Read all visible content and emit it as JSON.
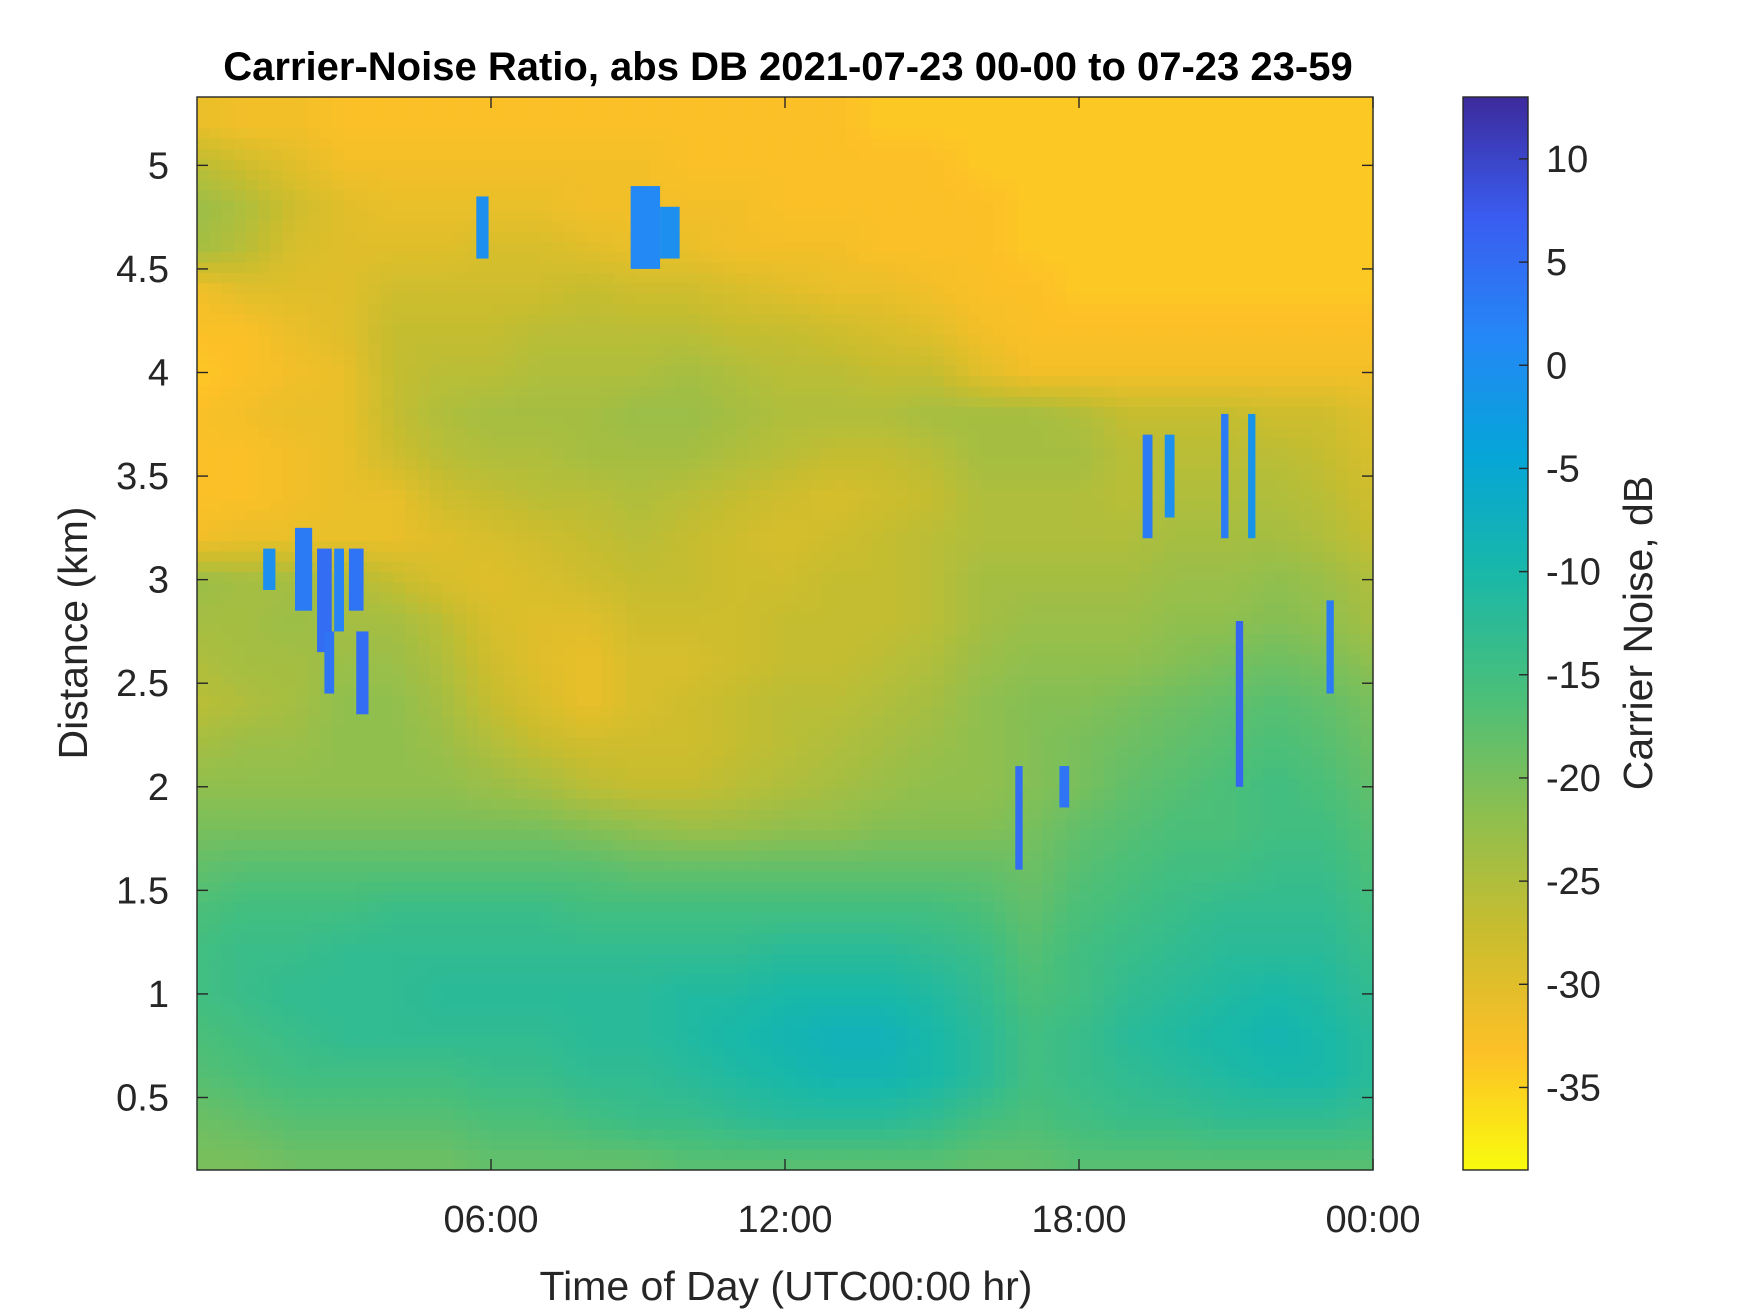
{
  "chart_data": {
    "type": "heatmap",
    "title": "Carrier-Noise Ratio, abs DB 2021-07-23 00-00 to 07-23 23-59",
    "xlabel": "Time of Day (UTC00:00 hr)",
    "ylabel": "Distance (km)",
    "colorbar_label": "Carrier Noise, dB",
    "xlim": [
      0,
      24
    ],
    "ylim": [
      0.15,
      5.33
    ],
    "clim": [
      -39,
      13
    ],
    "x_ticks": [
      6,
      12,
      18,
      24
    ],
    "x_tick_labels": [
      "06:00",
      "12:00",
      "18:00",
      "00:00"
    ],
    "y_ticks": [
      0.5,
      1,
      1.5,
      2,
      2.5,
      3,
      3.5,
      4,
      4.5,
      5
    ],
    "y_tick_labels": [
      "0.5",
      "1",
      "1.5",
      "2",
      "2.5",
      "3",
      "3.5",
      "4",
      "4.5",
      "5"
    ],
    "colorbar_ticks": [
      10,
      5,
      0,
      -5,
      -10,
      -15,
      -20,
      -25,
      -30,
      -35
    ],
    "colorbar_tick_labels": [
      "10",
      "5",
      "0",
      "-5",
      "-10",
      "-15",
      "-20",
      "-25",
      "-30",
      "-35"
    ],
    "grid": false,
    "colormap": "parula",
    "colormap_colors": [
      "#f9fb0e",
      "#fdc027",
      "#c9bd2e",
      "#8cbf50",
      "#49bf7a",
      "#19b8a8",
      "#05a5d8",
      "#2587f7",
      "#3a5cf0",
      "#3c2a9c"
    ],
    "time_hours": [
      0,
      1,
      2,
      3,
      4,
      5,
      6,
      7,
      8,
      9,
      10,
      11,
      12,
      13,
      14,
      15,
      16,
      17,
      18,
      19,
      20,
      21,
      22,
      23,
      24
    ],
    "distance_km": [
      0.2,
      0.4,
      0.6,
      0.8,
      1.0,
      1.2,
      1.4,
      1.6,
      1.8,
      2.0,
      2.2,
      2.4,
      2.6,
      2.8,
      3.0,
      3.2,
      3.4,
      3.6,
      3.8,
      4.0,
      4.2,
      4.4,
      4.6,
      4.8,
      5.0,
      5.2
    ],
    "carrier_noise_db": [
      [
        -20,
        -20,
        -19,
        -19,
        -19,
        -19,
        -18,
        -18,
        -18,
        -18,
        -17,
        -17,
        -17,
        -17,
        -17,
        -17,
        -18,
        -18,
        -17,
        -17,
        -17,
        -17,
        -17,
        -17,
        -17
      ],
      [
        -19,
        -18,
        -17,
        -17,
        -17,
        -17,
        -16,
        -16,
        -15,
        -14,
        -14,
        -13,
        -12,
        -12,
        -12,
        -13,
        -15,
        -16,
        -15,
        -14,
        -14,
        -13,
        -13,
        -13,
        -14
      ],
      [
        -17,
        -16,
        -15,
        -15,
        -15,
        -15,
        -14,
        -14,
        -13,
        -13,
        -12,
        -11,
        -10,
        -9,
        -9,
        -10,
        -12,
        -15,
        -14,
        -13,
        -12,
        -11,
        -10,
        -10,
        -12
      ],
      [
        -16,
        -15,
        -14,
        -13,
        -13,
        -13,
        -13,
        -13,
        -12,
        -12,
        -11,
        -10,
        -9,
        -8,
        -8,
        -10,
        -12,
        -15,
        -14,
        -12,
        -11,
        -10,
        -9,
        -10,
        -12
      ],
      [
        -15,
        -14,
        -13,
        -13,
        -13,
        -12,
        -12,
        -12,
        -12,
        -12,
        -11,
        -11,
        -10,
        -10,
        -10,
        -11,
        -13,
        -16,
        -15,
        -13,
        -12,
        -11,
        -10,
        -11,
        -13
      ],
      [
        -15,
        -14,
        -14,
        -13,
        -13,
        -13,
        -13,
        -13,
        -13,
        -13,
        -13,
        -13,
        -12,
        -12,
        -12,
        -13,
        -14,
        -17,
        -15,
        -14,
        -13,
        -12,
        -12,
        -12,
        -14
      ],
      [
        -16,
        -15,
        -15,
        -15,
        -14,
        -14,
        -14,
        -14,
        -15,
        -15,
        -15,
        -15,
        -15,
        -15,
        -15,
        -15,
        -16,
        -18,
        -16,
        -15,
        -14,
        -13,
        -13,
        -13,
        -15
      ],
      [
        -18,
        -17,
        -17,
        -17,
        -17,
        -17,
        -17,
        -17,
        -17,
        -18,
        -18,
        -18,
        -18,
        -18,
        -18,
        -18,
        -18,
        -19,
        -17,
        -16,
        -15,
        -15,
        -14,
        -14,
        -16
      ],
      [
        -20,
        -20,
        -20,
        -20,
        -20,
        -20,
        -20,
        -20,
        -21,
        -22,
        -23,
        -23,
        -22,
        -22,
        -21,
        -21,
        -21,
        -20,
        -18,
        -17,
        -16,
        -16,
        -15,
        -15,
        -17
      ],
      [
        -22,
        -22,
        -22,
        -22,
        -22,
        -22,
        -23,
        -24,
        -26,
        -27,
        -27,
        -26,
        -25,
        -24,
        -23,
        -22,
        -22,
        -21,
        -20,
        -18,
        -17,
        -16,
        -15,
        -16,
        -18
      ],
      [
        -24,
        -23,
        -23,
        -22,
        -22,
        -23,
        -25,
        -27,
        -28,
        -28,
        -28,
        -27,
        -26,
        -25,
        -24,
        -23,
        -22,
        -21,
        -20,
        -19,
        -18,
        -17,
        -16,
        -17,
        -19
      ],
      [
        -26,
        -25,
        -24,
        -22,
        -22,
        -24,
        -27,
        -29,
        -31,
        -29,
        -28,
        -27,
        -26,
        -26,
        -25,
        -24,
        -22,
        -21,
        -21,
        -20,
        -19,
        -18,
        -17,
        -18,
        -20
      ],
      [
        -25,
        -24,
        -24,
        -23,
        -23,
        -25,
        -28,
        -30,
        -31,
        -29,
        -29,
        -28,
        -27,
        -27,
        -26,
        -25,
        -23,
        -22,
        -22,
        -22,
        -21,
        -20,
        -19,
        -20,
        -22
      ],
      [
        -24,
        -24,
        -23,
        -24,
        -24,
        -26,
        -29,
        -30,
        -30,
        -28,
        -28,
        -28,
        -27,
        -27,
        -27,
        -26,
        -24,
        -23,
        -23,
        -23,
        -22,
        -22,
        -21,
        -22,
        -24
      ],
      [
        -23,
        -24,
        -24,
        -25,
        -27,
        -29,
        -30,
        -29,
        -28,
        -27,
        -27,
        -28,
        -28,
        -27,
        -27,
        -26,
        -24,
        -24,
        -24,
        -24,
        -23,
        -23,
        -22,
        -23,
        -25
      ],
      [
        -32,
        -31,
        -31,
        -31,
        -31,
        -30,
        -29,
        -28,
        -27,
        -26,
        -27,
        -28,
        -29,
        -28,
        -27,
        -26,
        -25,
        -25,
        -25,
        -25,
        -24,
        -24,
        -24,
        -25,
        -27
      ],
      [
        -33,
        -33,
        -32,
        -31,
        -31,
        -28,
        -27,
        -26,
        -26,
        -25,
        -26,
        -27,
        -28,
        -29,
        -28,
        -27,
        -25,
        -25,
        -25,
        -26,
        -25,
        -25,
        -25,
        -26,
        -28
      ],
      [
        -33,
        -33,
        -32,
        -31,
        -28,
        -26,
        -25,
        -25,
        -24,
        -24,
        -24,
        -25,
        -26,
        -27,
        -27,
        -26,
        -24,
        -24,
        -24,
        -26,
        -26,
        -26,
        -26,
        -27,
        -29
      ],
      [
        -33,
        -32,
        -31,
        -31,
        -27,
        -25,
        -24,
        -24,
        -24,
        -23,
        -23,
        -24,
        -25,
        -25,
        -25,
        -24,
        -24,
        -24,
        -25,
        -27,
        -27,
        -27,
        -28,
        -28,
        -30
      ],
      [
        -34,
        -33,
        -32,
        -31,
        -27,
        -26,
        -26,
        -25,
        -25,
        -25,
        -24,
        -25,
        -26,
        -26,
        -27,
        -27,
        -30,
        -32,
        -32,
        -32,
        -32,
        -32,
        -32,
        -32,
        -32
      ],
      [
        -33,
        -33,
        -31,
        -30,
        -27,
        -27,
        -27,
        -26,
        -26,
        -26,
        -26,
        -27,
        -27,
        -28,
        -29,
        -30,
        -32,
        -33,
        -33,
        -33,
        -33,
        -33,
        -33,
        -33,
        -33
      ],
      [
        -32,
        -30,
        -30,
        -30,
        -28,
        -28,
        -28,
        -28,
        -27,
        -28,
        -28,
        -29,
        -30,
        -31,
        -31,
        -32,
        -33,
        -33,
        -34,
        -34,
        -34,
        -34,
        -34,
        -34,
        -34
      ],
      [
        -24,
        -26,
        -29,
        -30,
        -30,
        -30,
        -29,
        -29,
        -30,
        -31,
        -31,
        -32,
        -32,
        -32,
        -33,
        -33,
        -33,
        -34,
        -34,
        -34,
        -34,
        -34,
        -34,
        -34,
        -34
      ],
      [
        -23,
        -25,
        -28,
        -30,
        -31,
        -31,
        -31,
        -31,
        -32,
        -32,
        -32,
        -32,
        -33,
        -33,
        -33,
        -33,
        -33,
        -34,
        -34,
        -34,
        -34,
        -34,
        -34,
        -34,
        -34
      ],
      [
        -26,
        -28,
        -30,
        -32,
        -32,
        -32,
        -32,
        -32,
        -32,
        -32,
        -33,
        -33,
        -33,
        -33,
        -33,
        -33,
        -34,
        -34,
        -34,
        -34,
        -34,
        -34,
        -34,
        -34,
        -34
      ],
      [
        -31,
        -32,
        -32,
        -33,
        -33,
        -33,
        -33,
        -33,
        -33,
        -33,
        -33,
        -33,
        -33,
        -33,
        -34,
        -34,
        -34,
        -34,
        -34,
        -34,
        -34,
        -34,
        -34,
        -34,
        -34
      ]
    ],
    "high_snr_features": [
      {
        "t0": 1.35,
        "t1": 1.6,
        "d0": 2.95,
        "d1": 3.15,
        "db": 0
      },
      {
        "t0": 2.0,
        "t1": 2.35,
        "d0": 2.85,
        "d1": 3.25,
        "db": 3
      },
      {
        "t0": 2.45,
        "t1": 2.75,
        "d0": 2.65,
        "d1": 3.15,
        "db": 5
      },
      {
        "t0": 2.6,
        "t1": 2.8,
        "d0": 2.45,
        "d1": 2.75,
        "db": 4
      },
      {
        "t0": 2.8,
        "t1": 3.0,
        "d0": 2.75,
        "d1": 3.15,
        "db": 2
      },
      {
        "t0": 3.1,
        "t1": 3.4,
        "d0": 2.85,
        "d1": 3.15,
        "db": 4
      },
      {
        "t0": 3.25,
        "t1": 3.5,
        "d0": 2.35,
        "d1": 2.75,
        "db": 5
      },
      {
        "t0": 5.7,
        "t1": 5.95,
        "d0": 4.55,
        "d1": 4.85,
        "db": 0
      },
      {
        "t0": 8.85,
        "t1": 9.45,
        "d0": 4.5,
        "d1": 4.9,
        "db": 1
      },
      {
        "t0": 9.45,
        "t1": 9.85,
        "d0": 4.55,
        "d1": 4.8,
        "db": 0
      },
      {
        "t0": 16.7,
        "t1": 16.85,
        "d0": 1.6,
        "d1": 2.1,
        "db": 5
      },
      {
        "t0": 17.6,
        "t1": 17.8,
        "d0": 1.9,
        "d1": 2.1,
        "db": 4
      },
      {
        "t0": 19.3,
        "t1": 19.5,
        "d0": 3.2,
        "d1": 3.7,
        "db": 3
      },
      {
        "t0": 19.75,
        "t1": 19.95,
        "d0": 3.3,
        "d1": 3.7,
        "db": 0
      },
      {
        "t0": 20.9,
        "t1": 21.05,
        "d0": 3.2,
        "d1": 3.8,
        "db": 3
      },
      {
        "t0": 21.2,
        "t1": 21.35,
        "d0": 2.0,
        "d1": 2.8,
        "db": 6
      },
      {
        "t0": 21.45,
        "t1": 21.6,
        "d0": 3.2,
        "d1": 3.8,
        "db": -1
      },
      {
        "t0": 23.05,
        "t1": 23.2,
        "d0": 2.45,
        "d1": 2.9,
        "db": 3
      }
    ]
  }
}
